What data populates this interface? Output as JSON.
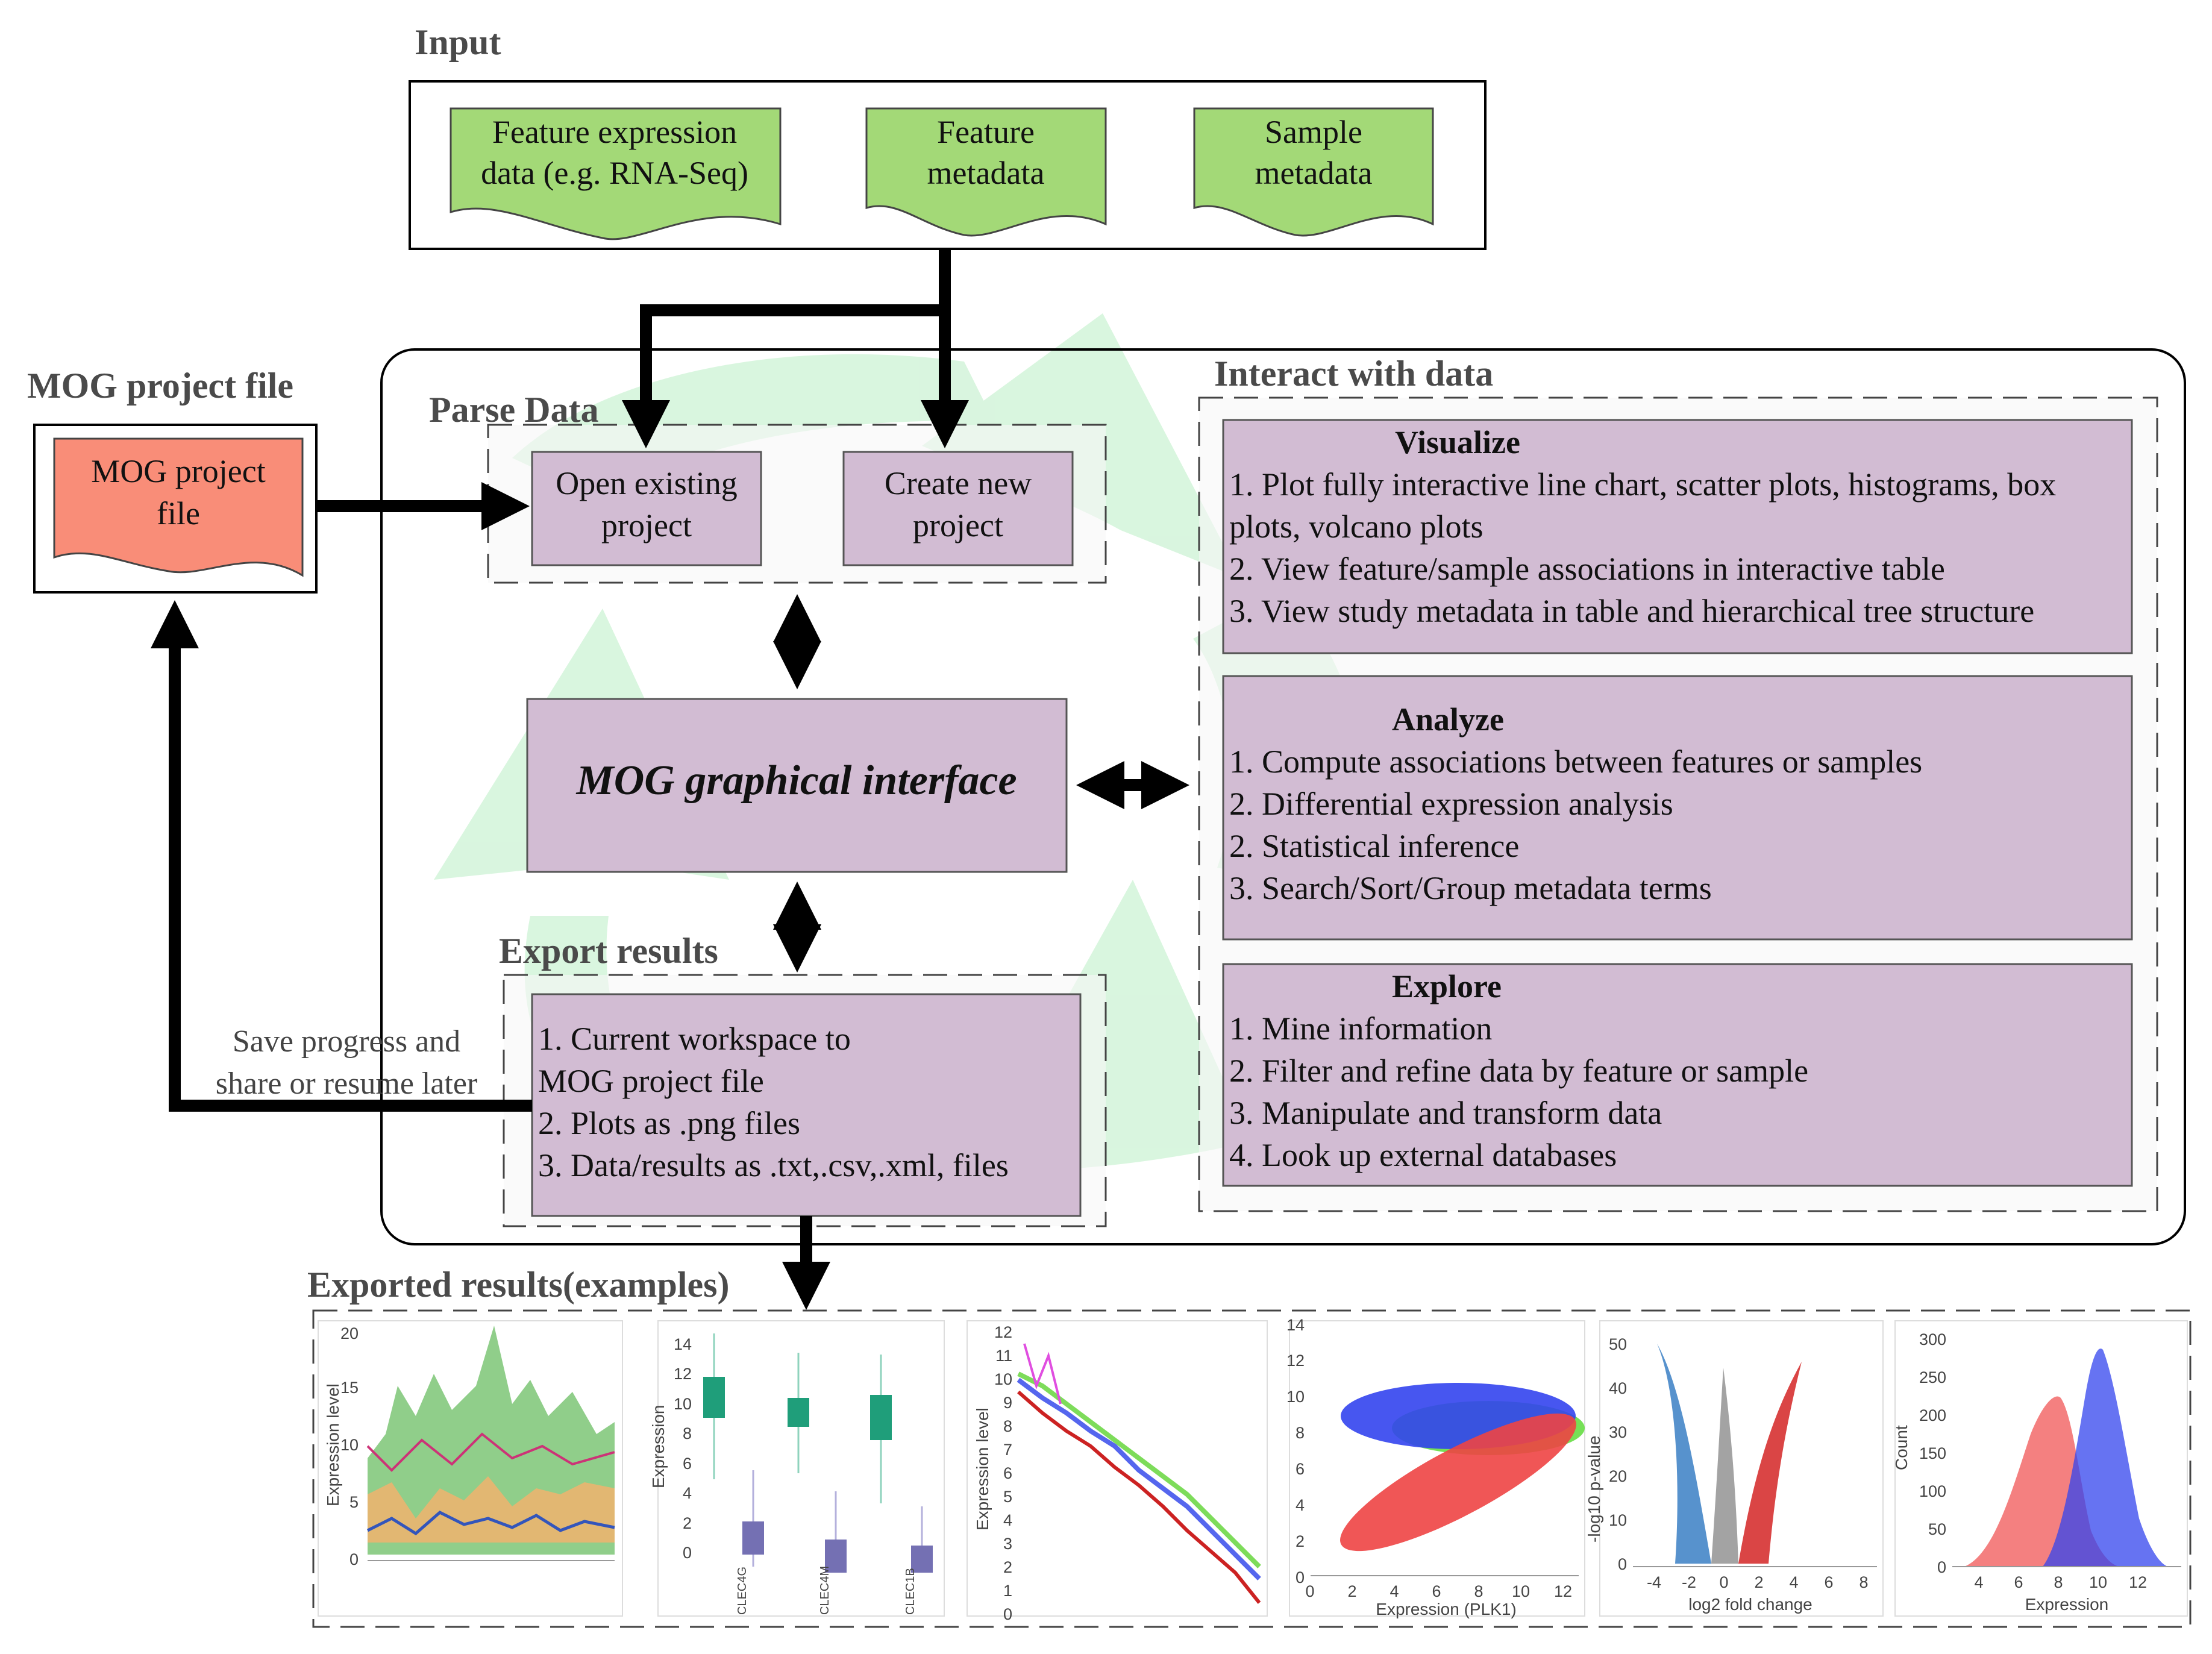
{
  "input": {
    "title": "Input",
    "docs": [
      {
        "lines": [
          "Feature expression",
          "data (e.g. RNA-Seq)"
        ]
      },
      {
        "lines": [
          "Feature",
          "metadata"
        ]
      },
      {
        "lines": [
          "Sample",
          "metadata"
        ]
      }
    ]
  },
  "mog_file": {
    "title": "MOG project file",
    "doc_lines": [
      "MOG project",
      "file"
    ]
  },
  "parse": {
    "title": "Parse Data",
    "open": [
      "Open existing",
      "project"
    ],
    "create": [
      "Create new",
      "project"
    ]
  },
  "gui": {
    "label": "MOG graphical interface"
  },
  "export": {
    "title": "Export results",
    "items": [
      "1. Current workspace to",
      "MOG project file",
      "2.  Plots as .png files",
      "3.  Data/results as .txt,.csv,.xml, files"
    ]
  },
  "save_note": [
    "Save progress and",
    "share or resume later"
  ],
  "interact": {
    "title": "Interact with data",
    "visualize": {
      "heading": "Visualize",
      "items": [
        "1. Plot fully interactive line chart, scatter plots, histograms, box",
        "plots, volcano plots",
        "2. View feature/sample associations in interactive table",
        "3. View study metadata in table and hierarchical tree structure"
      ]
    },
    "analyze": {
      "heading": "Analyze",
      "items": [
        "1. Compute associations between features or samples",
        "2. Differential expression analysis",
        "2. Statistical inference",
        "3. Search/Sort/Group metadata terms"
      ]
    },
    "explore": {
      "heading": "Explore",
      "items": [
        "1. Mine information",
        "2. Filter and refine data by feature or sample",
        "3. Manipulate and transform data",
        "4. Look up external databases"
      ]
    }
  },
  "exported": {
    "title": "Exported results(examples)",
    "plot1": {
      "ylabel": "Expression level",
      "yticks": [
        "20",
        "15",
        "10",
        "5",
        "0"
      ]
    },
    "plot2": {
      "ylabel": "Expression",
      "yticks": [
        "14",
        "12",
        "10",
        "8",
        "6",
        "4",
        "2",
        "0"
      ],
      "categories": [
        "CLEC4G",
        "CLEC4M",
        "CLEC1B"
      ]
    },
    "plot3": {
      "ylabel": "Expression level",
      "yticks": [
        "12",
        "11",
        "10",
        "9",
        "8",
        "7",
        "6",
        "5",
        "4",
        "3",
        "2",
        "1",
        "0"
      ]
    },
    "plot4": {
      "xlabel": "Expression (PLK1)",
      "xticks": [
        "0",
        "2",
        "4",
        "6",
        "8",
        "10",
        "12"
      ],
      "yticks": [
        "14",
        "12",
        "10",
        "8",
        "6",
        "4",
        "2",
        "0"
      ]
    },
    "plot5": {
      "xlabel": "log2 fold change",
      "ylabel": "-log10 p-value",
      "xticks": [
        "-4",
        "-2",
        "0",
        "2",
        "4",
        "6",
        "8"
      ],
      "yticks": [
        "50",
        "40",
        "30",
        "20",
        "10",
        "0"
      ]
    },
    "plot6": {
      "xlabel": "Expression",
      "ylabel": "Count",
      "xticks": [
        "4",
        "6",
        "8",
        "10",
        "12"
      ],
      "yticks": [
        "300",
        "250",
        "200",
        "150",
        "100",
        "50",
        "0"
      ]
    }
  },
  "colors": {
    "doc_green": "#a3d977",
    "doc_red": "#f98d78",
    "purple_box": "#d2bcd3",
    "swoosh_green": "#d5f5dc"
  }
}
